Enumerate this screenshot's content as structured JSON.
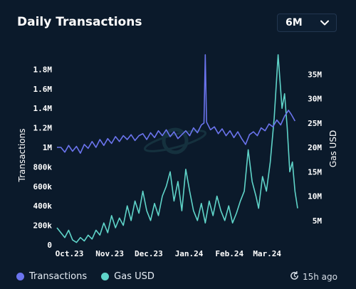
{
  "title": "Daily Transactions",
  "range_selector": {
    "value": "6M"
  },
  "updated": "15h ago",
  "colors": {
    "background": "#0b1a2b",
    "transactions": "#6b74ee",
    "gas": "#5fd4c9"
  },
  "icons": {
    "dropdown": "chevron-down-icon",
    "updated": "clock-refresh-icon",
    "watermark": "logo-watermark"
  },
  "chart_data": {
    "type": "line",
    "x_range": [
      "2023-09-28",
      "2024-03-31"
    ],
    "x_tick_labels": [
      "Oct.23",
      "Nov.23",
      "Dec.23",
      "Jan.24",
      "Feb.24",
      "Mar.24"
    ],
    "x_tick_dates": [
      "2023-10-01",
      "2023-11-01",
      "2023-12-01",
      "2024-01-01",
      "2024-02-01",
      "2024-03-01"
    ],
    "ylabel": "Transactions",
    "y2label": "Gas USD",
    "ylim": [
      0,
      2000000
    ],
    "y2lim": [
      0,
      40000000
    ],
    "y_ticks": [
      0,
      200000,
      400000,
      600000,
      800000,
      1000000,
      1200000,
      1400000,
      1600000,
      1800000
    ],
    "y_tick_labels": [
      "0",
      "200k",
      "400k",
      "600k",
      "800k",
      "1M",
      "1.2M",
      "1.4M",
      "1.6M",
      "1.8M"
    ],
    "y2_ticks": [
      5000000,
      10000000,
      15000000,
      20000000,
      25000000,
      30000000,
      35000000
    ],
    "y2_tick_labels": [
      "5M",
      "10M",
      "15M",
      "20M",
      "25M",
      "30M",
      "35M"
    ],
    "grid": false,
    "legend": "bottom-left",
    "series": [
      {
        "name": "Transactions",
        "axis": "left",
        "points": [
          [
            "2023-09-28",
            1000000
          ],
          [
            "2023-10-01",
            1000000
          ],
          [
            "2023-10-04",
            950000
          ],
          [
            "2023-10-07",
            1020000
          ],
          [
            "2023-10-10",
            960000
          ],
          [
            "2023-10-13",
            1010000
          ],
          [
            "2023-10-16",
            940000
          ],
          [
            "2023-10-19",
            1030000
          ],
          [
            "2023-10-22",
            990000
          ],
          [
            "2023-10-25",
            1060000
          ],
          [
            "2023-10-28",
            1000000
          ],
          [
            "2023-10-31",
            1080000
          ],
          [
            "2023-11-03",
            1020000
          ],
          [
            "2023-11-06",
            1090000
          ],
          [
            "2023-11-09",
            1040000
          ],
          [
            "2023-11-12",
            1110000
          ],
          [
            "2023-11-15",
            1060000
          ],
          [
            "2023-11-18",
            1120000
          ],
          [
            "2023-11-21",
            1080000
          ],
          [
            "2023-11-24",
            1130000
          ],
          [
            "2023-11-27",
            1070000
          ],
          [
            "2023-11-30",
            1120000
          ],
          [
            "2023-12-03",
            1140000
          ],
          [
            "2023-12-06",
            1080000
          ],
          [
            "2023-12-09",
            1150000
          ],
          [
            "2023-12-12",
            1100000
          ],
          [
            "2023-12-15",
            1170000
          ],
          [
            "2023-12-18",
            1120000
          ],
          [
            "2023-12-21",
            1180000
          ],
          [
            "2023-12-24",
            1110000
          ],
          [
            "2023-12-27",
            1160000
          ],
          [
            "2023-12-30",
            1090000
          ],
          [
            "2024-01-02",
            1130000
          ],
          [
            "2024-01-05",
            1170000
          ],
          [
            "2024-01-08",
            1120000
          ],
          [
            "2024-01-11",
            1200000
          ],
          [
            "2024-01-14",
            1150000
          ],
          [
            "2024-01-17",
            1230000
          ],
          [
            "2024-01-19",
            1250000
          ],
          [
            "2024-01-20",
            1950000
          ],
          [
            "2024-01-21",
            1260000
          ],
          [
            "2024-01-24",
            1180000
          ],
          [
            "2024-01-27",
            1210000
          ],
          [
            "2024-01-30",
            1140000
          ],
          [
            "2024-02-02",
            1190000
          ],
          [
            "2024-02-05",
            1120000
          ],
          [
            "2024-02-08",
            1170000
          ],
          [
            "2024-02-11",
            1100000
          ],
          [
            "2024-02-14",
            1160000
          ],
          [
            "2024-02-17",
            1090000
          ],
          [
            "2024-02-20",
            1030000
          ],
          [
            "2024-02-23",
            1130000
          ],
          [
            "2024-02-26",
            1160000
          ],
          [
            "2024-02-29",
            1120000
          ],
          [
            "2024-03-03",
            1200000
          ],
          [
            "2024-03-06",
            1170000
          ],
          [
            "2024-03-09",
            1240000
          ],
          [
            "2024-03-12",
            1210000
          ],
          [
            "2024-03-15",
            1280000
          ],
          [
            "2024-03-18",
            1230000
          ],
          [
            "2024-03-21",
            1320000
          ],
          [
            "2024-03-24",
            1380000
          ],
          [
            "2024-03-26",
            1340000
          ],
          [
            "2024-03-29",
            1270000
          ]
        ]
      },
      {
        "name": "Gas USD",
        "axis": "right",
        "points": [
          [
            "2023-09-28",
            3500000
          ],
          [
            "2023-10-01",
            2500000
          ],
          [
            "2023-10-04",
            1500000
          ],
          [
            "2023-10-07",
            3000000
          ],
          [
            "2023-10-10",
            1000000
          ],
          [
            "2023-10-13",
            500000
          ],
          [
            "2023-10-16",
            1500000
          ],
          [
            "2023-10-19",
            800000
          ],
          [
            "2023-10-22",
            2000000
          ],
          [
            "2023-10-25",
            1200000
          ],
          [
            "2023-10-28",
            3000000
          ],
          [
            "2023-10-31",
            2000000
          ],
          [
            "2023-11-03",
            4500000
          ],
          [
            "2023-11-06",
            2500000
          ],
          [
            "2023-11-09",
            6000000
          ],
          [
            "2023-11-12",
            3500000
          ],
          [
            "2023-11-15",
            5500000
          ],
          [
            "2023-11-18",
            4000000
          ],
          [
            "2023-11-21",
            8000000
          ],
          [
            "2023-11-24",
            5000000
          ],
          [
            "2023-11-27",
            9000000
          ],
          [
            "2023-11-30",
            6500000
          ],
          [
            "2023-12-03",
            11000000
          ],
          [
            "2023-12-06",
            7000000
          ],
          [
            "2023-12-09",
            5000000
          ],
          [
            "2023-12-12",
            8500000
          ],
          [
            "2023-12-15",
            6000000
          ],
          [
            "2023-12-18",
            10000000
          ],
          [
            "2023-12-21",
            12000000
          ],
          [
            "2023-12-24",
            15000000
          ],
          [
            "2023-12-27",
            9000000
          ],
          [
            "2023-12-30",
            13000000
          ],
          [
            "2024-01-02",
            7000000
          ],
          [
            "2024-01-05",
            15500000
          ],
          [
            "2024-01-08",
            11000000
          ],
          [
            "2024-01-11",
            7000000
          ],
          [
            "2024-01-14",
            5000000
          ],
          [
            "2024-01-17",
            8500000
          ],
          [
            "2024-01-20",
            4500000
          ],
          [
            "2024-01-23",
            9000000
          ],
          [
            "2024-01-26",
            6000000
          ],
          [
            "2024-01-29",
            10000000
          ],
          [
            "2024-02-01",
            7000000
          ],
          [
            "2024-02-04",
            5000000
          ],
          [
            "2024-02-07",
            8000000
          ],
          [
            "2024-02-10",
            4500000
          ],
          [
            "2024-02-13",
            6500000
          ],
          [
            "2024-02-16",
            9000000
          ],
          [
            "2024-02-19",
            11000000
          ],
          [
            "2024-02-22",
            19500000
          ],
          [
            "2024-02-25",
            13000000
          ],
          [
            "2024-02-28",
            10000000
          ],
          [
            "2024-03-01",
            7500000
          ],
          [
            "2024-03-04",
            14000000
          ],
          [
            "2024-03-07",
            11000000
          ],
          [
            "2024-03-10",
            17000000
          ],
          [
            "2024-03-13",
            26000000
          ],
          [
            "2024-03-16",
            39000000
          ],
          [
            "2024-03-19",
            28000000
          ],
          [
            "2024-03-21",
            31000000
          ],
          [
            "2024-03-23",
            24000000
          ],
          [
            "2024-03-25",
            15000000
          ],
          [
            "2024-03-27",
            17000000
          ],
          [
            "2024-03-29",
            11000000
          ],
          [
            "2024-03-31",
            7500000
          ]
        ]
      }
    ]
  }
}
